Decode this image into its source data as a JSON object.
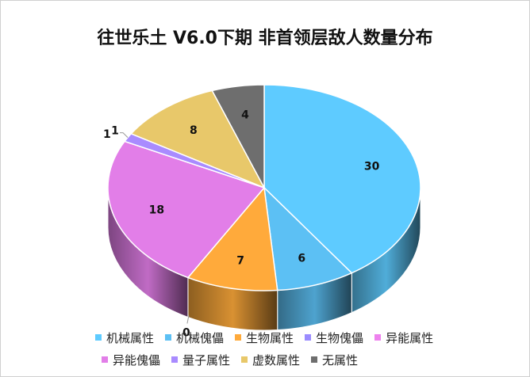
{
  "chart_data": {
    "type": "pie",
    "title": "往世乐土 V6.0下期 非首领层敌人数量分布",
    "categories": [
      "机械属性",
      "机械傀儡",
      "生物属性",
      "生物傀儡",
      "异能属性",
      "异能傀儡",
      "量子属性",
      "虚数属性",
      "无属性"
    ],
    "values": [
      30,
      6,
      7,
      0,
      0,
      18,
      1,
      8,
      4
    ],
    "colors": [
      "#5ECBFF",
      "#5CC0F4",
      "#FFAA3B",
      "#9B8CFF",
      "#EE82EE",
      "#E27EE8",
      "#A98BFF",
      "#E8C86A",
      "#6E6E6E"
    ],
    "data_labels": [
      "30",
      "6",
      "7",
      "",
      "0",
      "18",
      "1",
      "8",
      "4"
    ],
    "extra_labels": [
      "1"
    ],
    "legend": "bottom",
    "style": "3d"
  }
}
